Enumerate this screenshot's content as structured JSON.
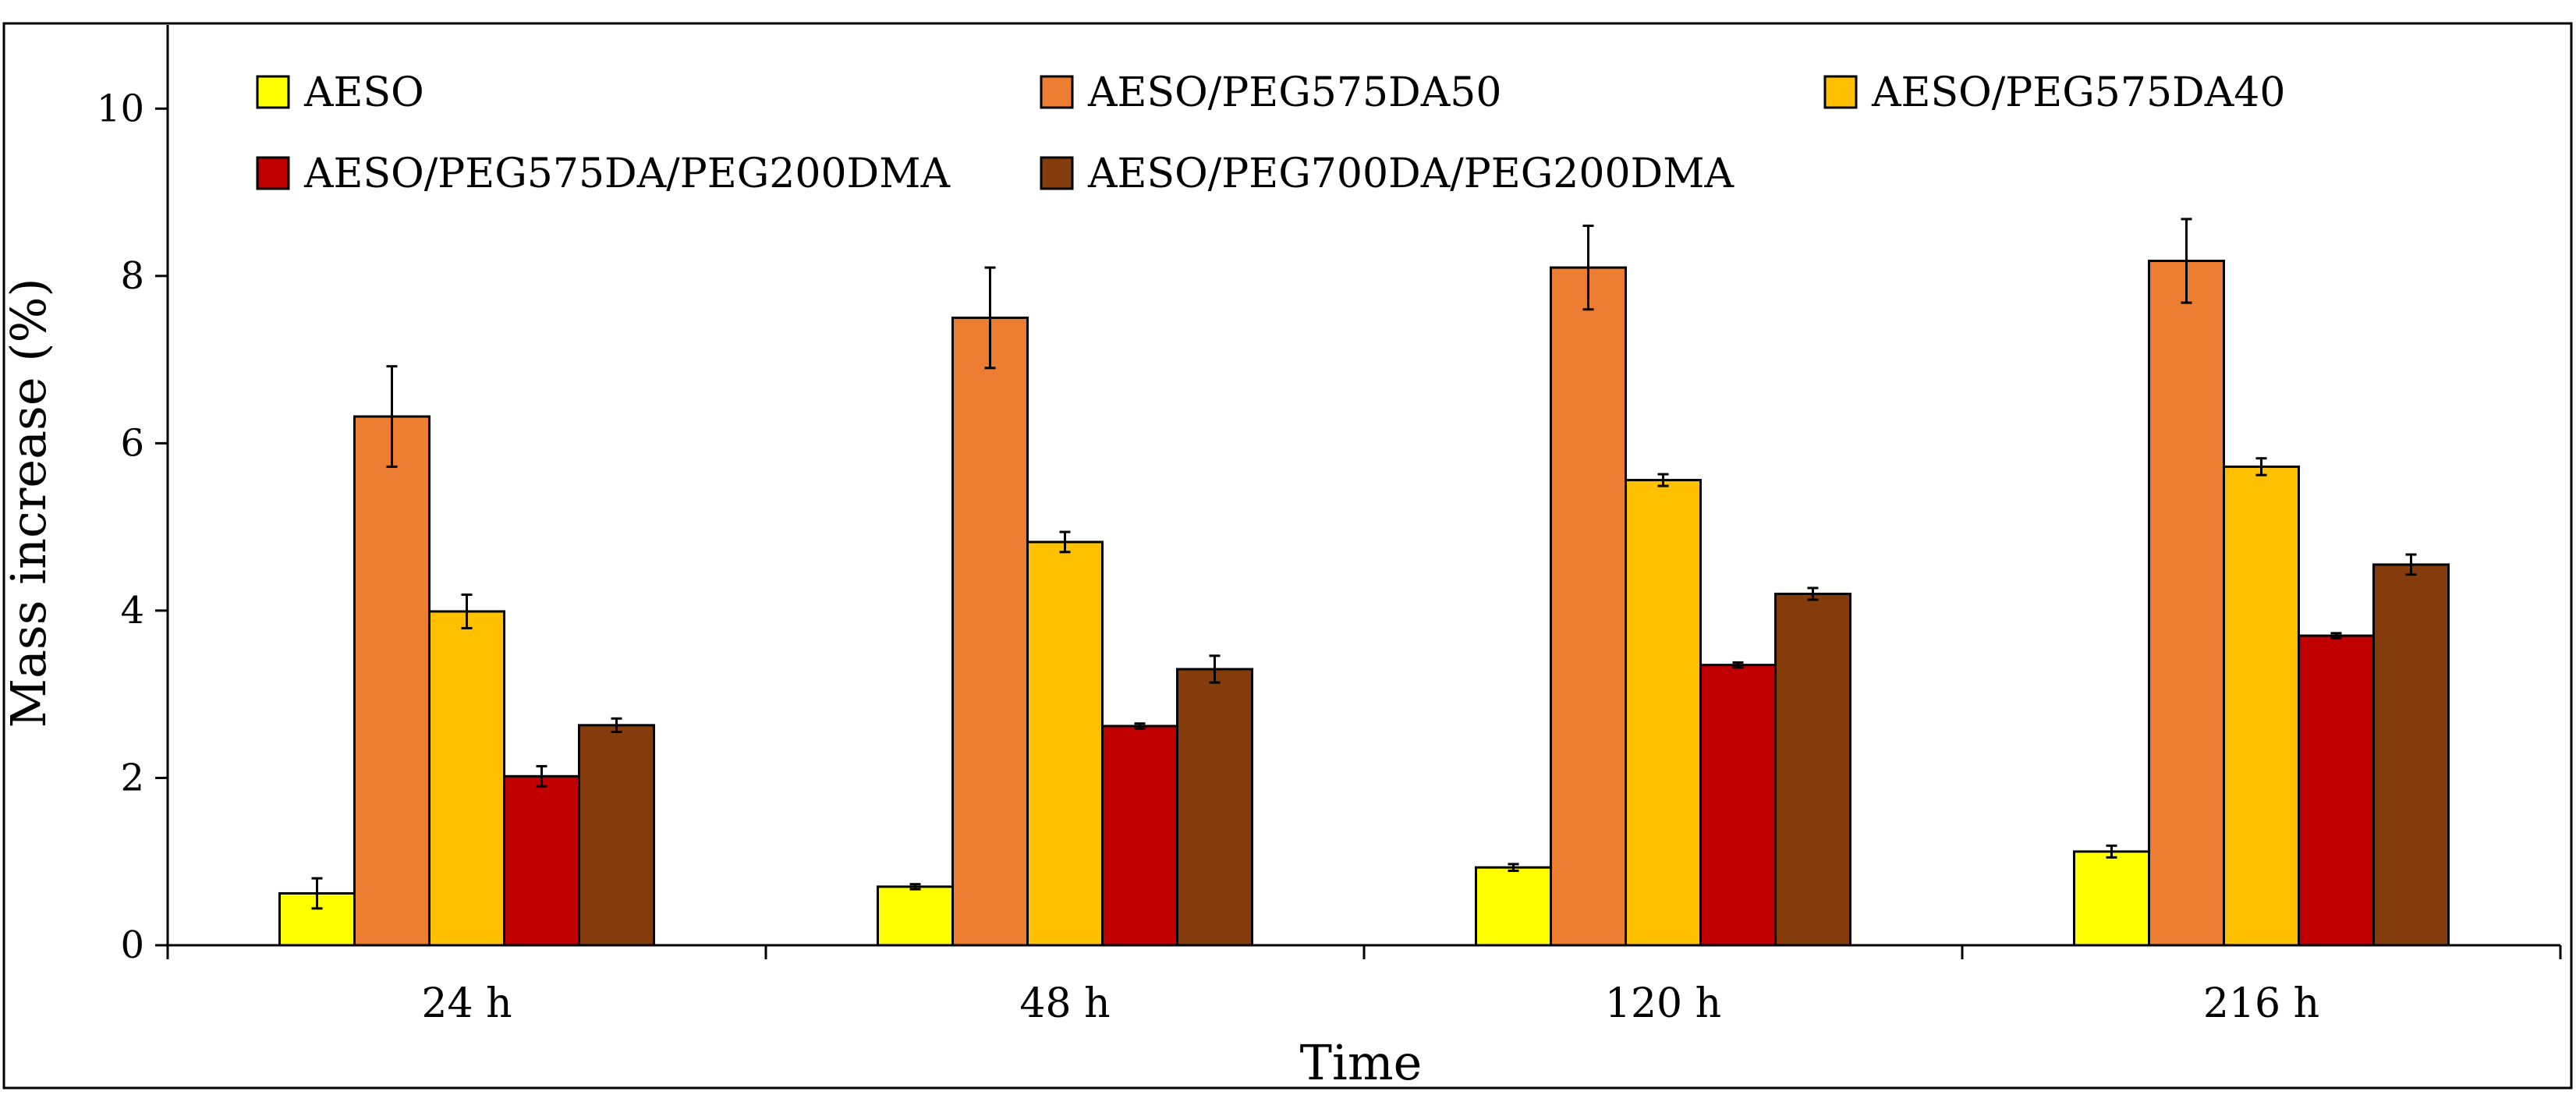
{
  "chart_data": {
    "type": "bar",
    "title": "",
    "xlabel": "Time",
    "ylabel": "Mass increase (%)",
    "ylim": [
      0,
      11
    ],
    "yticks": [
      0,
      2,
      4,
      6,
      8,
      10
    ],
    "categories": [
      "24 h",
      "48 h",
      "120 h",
      "216 h"
    ],
    "legend_position": "top-left",
    "grid": false,
    "series": [
      {
        "name": "AESO",
        "color": "#ffff00",
        "values": [
          0.62,
          0.7,
          0.93,
          1.12
        ],
        "errors": [
          0.18,
          0.03,
          0.04,
          0.07
        ]
      },
      {
        "name": "AESO/PEG575DA50",
        "color": "#ed7d31",
        "values": [
          6.32,
          7.5,
          8.1,
          8.18
        ],
        "errors": [
          0.6,
          0.6,
          0.5,
          0.5
        ]
      },
      {
        "name": "AESO/PEG575DA40",
        "color": "#ffc000",
        "values": [
          3.99,
          4.82,
          5.56,
          5.72
        ],
        "errors": [
          0.2,
          0.12,
          0.07,
          0.1
        ]
      },
      {
        "name": "AESO/PEG575DA/PEG200DMA",
        "color": "#c00000",
        "values": [
          2.02,
          2.62,
          3.35,
          3.7
        ],
        "errors": [
          0.12,
          0.03,
          0.03,
          0.03
        ]
      },
      {
        "name": "AESO/PEG700DA/PEG200DMA",
        "color": "#843c0c",
        "values": [
          2.63,
          3.3,
          4.2,
          4.55
        ],
        "errors": [
          0.08,
          0.16,
          0.07,
          0.12
        ]
      }
    ]
  }
}
